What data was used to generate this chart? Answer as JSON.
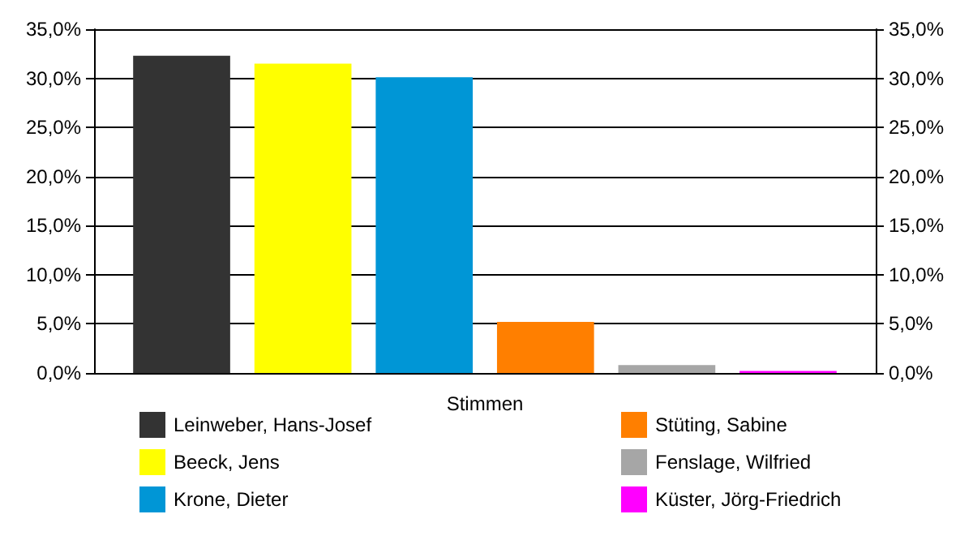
{
  "chart_data": {
    "type": "bar",
    "xlabel": "Stimmen",
    "categories": [
      null
    ],
    "series": [
      {
        "name": "Leinweber, Hans-Josef",
        "color": "#333333",
        "values": [
          32.3
        ]
      },
      {
        "name": "Beeck, Jens",
        "color": "#ffff00",
        "values": [
          31.5
        ]
      },
      {
        "name": "Krone, Dieter",
        "color": "#0096d6",
        "values": [
          30.1
        ]
      },
      {
        "name": "Stüting, Sabine",
        "color": "#ff7f00",
        "values": [
          5.2
        ]
      },
      {
        "name": "Fenslage, Wilfried",
        "color": "#a6a6a6",
        "values": [
          0.8
        ]
      },
      {
        "name": "Küster, Jörg-Friedrich",
        "color": "#ff00ff",
        "values": [
          0.2
        ]
      }
    ],
    "ylim": [
      0,
      35
    ],
    "yticks": [
      {
        "value": 0,
        "label": "0,0%"
      },
      {
        "value": 5,
        "label": "5,0%"
      },
      {
        "value": 10,
        "label": "10,0%"
      },
      {
        "value": 15,
        "label": "15,0%"
      },
      {
        "value": 20,
        "label": "20,0%"
      },
      {
        "value": 25,
        "label": "25,0%"
      },
      {
        "value": 30,
        "label": "30,0%"
      },
      {
        "value": 35,
        "label": "35,0%"
      }
    ],
    "y2lim": [
      0,
      35
    ],
    "y2ticks": [
      {
        "value": 0,
        "label": "0,0%"
      },
      {
        "value": 5,
        "label": "5,0%"
      },
      {
        "value": 10,
        "label": "10,0%"
      },
      {
        "value": 15,
        "label": "15,0%"
      },
      {
        "value": 20,
        "label": "20,0%"
      },
      {
        "value": 25,
        "label": "25,0%"
      },
      {
        "value": 30,
        "label": "30,0%"
      },
      {
        "value": 35,
        "label": "35,0%"
      }
    ],
    "grid": "y",
    "legend": "bottom"
  }
}
